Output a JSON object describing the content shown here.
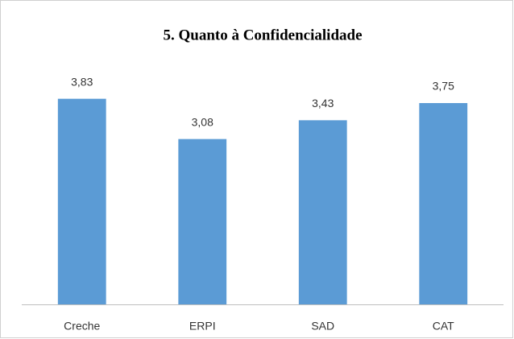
{
  "chart_data": {
    "type": "bar",
    "title": "5. Quanto à Confidencialidade",
    "categories": [
      "Creche",
      "ERPI",
      "SAD",
      "CAT"
    ],
    "values": [
      3.83,
      3.08,
      3.43,
      3.75
    ],
    "value_labels": [
      "3,83",
      "3,08",
      "3,43",
      "3,75"
    ],
    "color": "#5b9bd5",
    "ylim": [
      0,
      4.5
    ]
  }
}
